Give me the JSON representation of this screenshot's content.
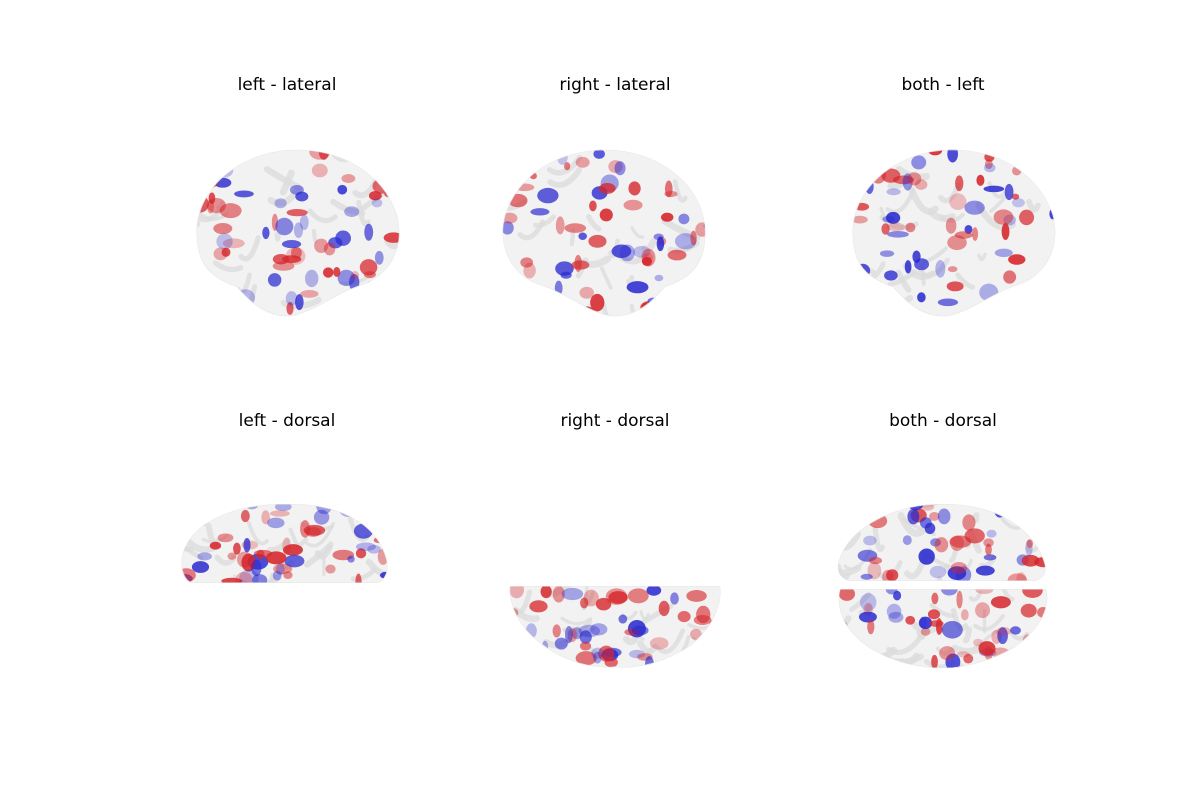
{
  "panels": [
    {
      "title": "left - lateral",
      "view": "lateral-left"
    },
    {
      "title": "right - lateral",
      "view": "lateral-right"
    },
    {
      "title": "both - left",
      "view": "lateral-left"
    },
    {
      "title": "left - dorsal",
      "view": "dorsal-upper"
    },
    {
      "title": "right - dorsal",
      "view": "dorsal-lower"
    },
    {
      "title": "both - dorsal",
      "view": "dorsal-both"
    }
  ],
  "colors": {
    "surface": "#f2f2f2",
    "surface_shade": "#dcdcdc",
    "positive": "#d6262b",
    "negative": "#2a2ad0"
  }
}
